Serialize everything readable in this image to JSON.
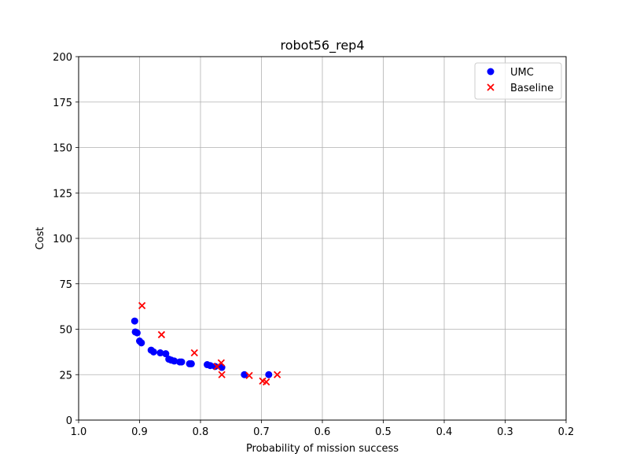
{
  "chart_data": {
    "type": "scatter",
    "title": "robot56_rep4",
    "xlabel": "Probability of mission success",
    "ylabel": "Cost",
    "xlim": [
      1.0,
      0.2
    ],
    "ylim": [
      0,
      200
    ],
    "x_inverted": true,
    "grid": true,
    "legend_position": "top-right",
    "xticks": [
      1.0,
      0.9,
      0.8,
      0.7,
      0.6,
      0.5,
      0.4,
      0.3,
      0.2
    ],
    "xtick_labels": [
      "1.0",
      "0.9",
      "0.8",
      "0.7",
      "0.6",
      "0.5",
      "0.4",
      "0.3",
      "0.2"
    ],
    "yticks": [
      0,
      25,
      50,
      75,
      100,
      125,
      150,
      175,
      200
    ],
    "ytick_labels": [
      "0",
      "25",
      "50",
      "75",
      "100",
      "125",
      "150",
      "175",
      "200"
    ],
    "series": [
      {
        "name": "UMC",
        "marker": "circle",
        "color": "#0000ff",
        "points": [
          [
            0.908,
            54.5
          ],
          [
            0.907,
            48.5
          ],
          [
            0.904,
            48.0
          ],
          [
            0.9,
            43.5
          ],
          [
            0.897,
            42.5
          ],
          [
            0.881,
            38.5
          ],
          [
            0.877,
            37.5
          ],
          [
            0.866,
            37.0
          ],
          [
            0.857,
            36.5
          ],
          [
            0.852,
            33.5
          ],
          [
            0.848,
            33.0
          ],
          [
            0.843,
            32.5
          ],
          [
            0.834,
            32.0
          ],
          [
            0.831,
            32.0
          ],
          [
            0.818,
            31.0
          ],
          [
            0.815,
            31.0
          ],
          [
            0.789,
            30.5
          ],
          [
            0.784,
            30.0
          ],
          [
            0.776,
            29.5
          ],
          [
            0.765,
            29.0
          ],
          [
            0.728,
            25.0
          ],
          [
            0.688,
            25.0
          ]
        ]
      },
      {
        "name": "Baseline",
        "marker": "x",
        "color": "#ff0000",
        "points": [
          [
            0.896,
            63.0
          ],
          [
            0.864,
            47.0
          ],
          [
            0.81,
            37.0
          ],
          [
            0.766,
            31.5
          ],
          [
            0.773,
            29.5
          ],
          [
            0.765,
            25.0
          ],
          [
            0.72,
            24.5
          ],
          [
            0.698,
            21.5
          ],
          [
            0.692,
            21.0
          ],
          [
            0.674,
            25.0
          ]
        ]
      }
    ]
  }
}
